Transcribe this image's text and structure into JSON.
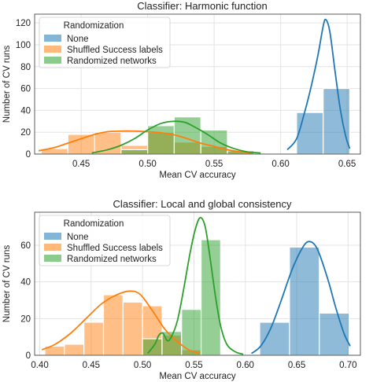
{
  "chart_data": [
    {
      "type": "histogram",
      "title": "Classifier: Harmonic function",
      "xlabel": "Mean CV accuracy",
      "ylabel": "Number of CV runs",
      "xlim": [
        0.415,
        0.66
      ],
      "ylim": [
        0,
        128
      ],
      "xticks": [
        0.45,
        0.5,
        0.55,
        0.6,
        0.65
      ],
      "xtick_labels": [
        "0.45",
        "0.50",
        "0.55",
        "0.60",
        "0.65"
      ],
      "yticks": [
        0,
        20,
        40,
        60,
        80,
        100,
        120
      ],
      "ytick_labels": [
        "0",
        "20",
        "40",
        "60",
        "80",
        "100",
        "120"
      ],
      "grid": true,
      "legend": {
        "title": "Randomization",
        "placement": "top-left",
        "entries": [
          "None",
          "Shuffled Success labels",
          "Randomized networks"
        ]
      },
      "series": [
        {
          "name": "None",
          "color": "#1f77b4",
          "bins": [
            [
              0.612,
              0.632,
              38
            ],
            [
              0.632,
              0.652,
              60
            ]
          ],
          "kde": [
            [
              0.605,
              4
            ],
            [
              0.612,
              14
            ],
            [
              0.618,
              38
            ],
            [
              0.623,
              62
            ],
            [
              0.628,
              90
            ],
            [
              0.632,
              117
            ],
            [
              0.634,
              123
            ],
            [
              0.637,
              112
            ],
            [
              0.641,
              75
            ],
            [
              0.645,
              40
            ],
            [
              0.649,
              16
            ],
            [
              0.652,
              5
            ]
          ]
        },
        {
          "name": "Shuffled Success labels",
          "color": "#ff7f0e",
          "bins": [
            [
              0.42,
              0.44,
              5
            ],
            [
              0.44,
              0.46,
              18
            ],
            [
              0.46,
              0.48,
              20
            ],
            [
              0.48,
              0.5,
              8
            ],
            [
              0.5,
              0.52,
              20
            ],
            [
              0.52,
              0.54,
              11
            ],
            [
              0.54,
              0.56,
              7
            ],
            [
              0.56,
              0.58,
              3
            ]
          ],
          "kde": [
            [
              0.418,
              3
            ],
            [
              0.43,
              6
            ],
            [
              0.44,
              10
            ],
            [
              0.45,
              14
            ],
            [
              0.46,
              18
            ],
            [
              0.47,
              20.5
            ],
            [
              0.48,
              21
            ],
            [
              0.49,
              21
            ],
            [
              0.5,
              20.5
            ],
            [
              0.51,
              19.5
            ],
            [
              0.52,
              17.5
            ],
            [
              0.53,
              14
            ],
            [
              0.54,
              10
            ],
            [
              0.55,
              7
            ],
            [
              0.56,
              4
            ],
            [
              0.57,
              2
            ],
            [
              0.578,
              1
            ]
          ]
        },
        {
          "name": "Randomized networks",
          "color": "#2ca02c",
          "bins": [
            [
              0.48,
              0.5,
              4
            ],
            [
              0.5,
              0.52,
              26
            ],
            [
              0.52,
              0.54,
              34
            ],
            [
              0.54,
              0.56,
              22
            ],
            [
              0.56,
              0.58,
              3
            ]
          ],
          "kde": [
            [
              0.458,
              1
            ],
            [
              0.47,
              4
            ],
            [
              0.48,
              8
            ],
            [
              0.49,
              14
            ],
            [
              0.5,
              22
            ],
            [
              0.51,
              28
            ],
            [
              0.52,
              30
            ],
            [
              0.528,
              29
            ],
            [
              0.535,
              25
            ],
            [
              0.545,
              18
            ],
            [
              0.555,
              10
            ],
            [
              0.565,
              5
            ],
            [
              0.575,
              2
            ],
            [
              0.585,
              1
            ]
          ]
        }
      ]
    },
    {
      "type": "histogram",
      "title": "Classifier: Local and global consistency",
      "xlabel": "Mean CV accuracy",
      "ylabel": "Number of CV runs",
      "xlim": [
        0.395,
        0.712
      ],
      "ylim": [
        0,
        78
      ],
      "xticks": [
        0.4,
        0.45,
        0.5,
        0.55,
        0.6,
        0.65,
        0.7
      ],
      "xtick_labels": [
        "0.40",
        "0.45",
        "0.50",
        "0.55",
        "0.60",
        "0.65",
        "0.70"
      ],
      "yticks": [
        0,
        20,
        40,
        60
      ],
      "ytick_labels": [
        "0",
        "20",
        "40",
        "60"
      ],
      "grid": true,
      "legend": {
        "title": "Randomization",
        "placement": "top-left",
        "entries": [
          "None",
          "Shuffled Success labels",
          "Randomized networks"
        ]
      },
      "series": [
        {
          "name": "None",
          "color": "#1f77b4",
          "bins": [
            [
              0.614,
              0.643,
              18
            ],
            [
              0.643,
              0.672,
              59
            ],
            [
              0.672,
              0.701,
              23
            ]
          ],
          "kde": [
            [
              0.606,
              1
            ],
            [
              0.615,
              5
            ],
            [
              0.625,
              15
            ],
            [
              0.635,
              30
            ],
            [
              0.645,
              46
            ],
            [
              0.655,
              58
            ],
            [
              0.662,
              62
            ],
            [
              0.67,
              58
            ],
            [
              0.68,
              42
            ],
            [
              0.688,
              26
            ],
            [
              0.696,
              12
            ],
            [
              0.702,
              5
            ]
          ]
        },
        {
          "name": "Shuffled Success labels",
          "color": "#ff7f0e",
          "bins": [
            [
              0.405,
              0.424,
              5
            ],
            [
              0.424,
              0.443,
              6
            ],
            [
              0.443,
              0.462,
              18
            ],
            [
              0.462,
              0.481,
              33
            ],
            [
              0.481,
              0.5,
              29
            ],
            [
              0.5,
              0.519,
              27
            ],
            [
              0.519,
              0.538,
              11
            ],
            [
              0.538,
              0.557,
              3
            ]
          ],
          "kde": [
            [
              0.402,
              3
            ],
            [
              0.415,
              6
            ],
            [
              0.43,
              12
            ],
            [
              0.445,
              20
            ],
            [
              0.46,
              28
            ],
            [
              0.475,
              33
            ],
            [
              0.488,
              35
            ],
            [
              0.498,
              33
            ],
            [
              0.51,
              24
            ],
            [
              0.522,
              14
            ],
            [
              0.535,
              7
            ],
            [
              0.545,
              3
            ],
            [
              0.555,
              1
            ]
          ]
        },
        {
          "name": "Randomized networks",
          "color": "#2ca02c",
          "bins": [
            [
              0.5,
              0.519,
              9
            ],
            [
              0.519,
              0.538,
              13
            ],
            [
              0.538,
              0.557,
              25
            ],
            [
              0.557,
              0.576,
              63
            ],
            [
              0.576,
              0.595,
              0
            ]
          ],
          "kde": [
            [
              0.505,
              1
            ],
            [
              0.512,
              6
            ],
            [
              0.516,
              11
            ],
            [
              0.52,
              12
            ],
            [
              0.524,
              8
            ],
            [
              0.528,
              10
            ],
            [
              0.534,
              19
            ],
            [
              0.54,
              36
            ],
            [
              0.546,
              55
            ],
            [
              0.551,
              68
            ],
            [
              0.556,
              75
            ],
            [
              0.561,
              70
            ],
            [
              0.566,
              52
            ],
            [
              0.571,
              32
            ],
            [
              0.576,
              16
            ],
            [
              0.582,
              6
            ],
            [
              0.59,
              2
            ],
            [
              0.598,
              0.5
            ]
          ]
        }
      ]
    }
  ]
}
